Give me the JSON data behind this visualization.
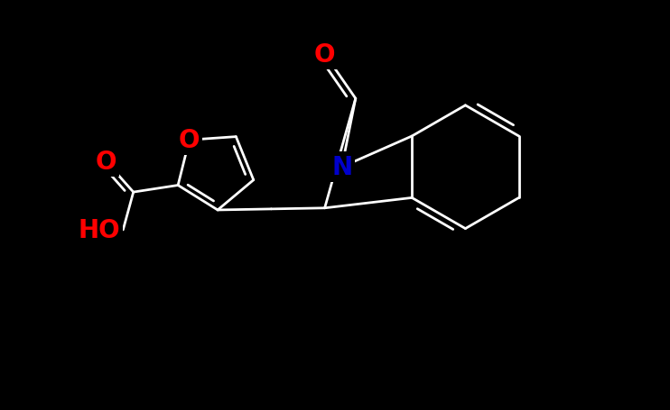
{
  "background_color": "#000000",
  "bond_color": "#ffffff",
  "atom_colors": {
    "O": "#ff0000",
    "N": "#0000cc",
    "HO": "#ff0000"
  },
  "font_size": 20,
  "line_width": 2.0,
  "figsize": [
    7.42,
    4.56
  ],
  "dpi": 100,
  "xlim": [
    -1.0,
    8.5
  ],
  "ylim": [
    -1.5,
    4.5
  ]
}
